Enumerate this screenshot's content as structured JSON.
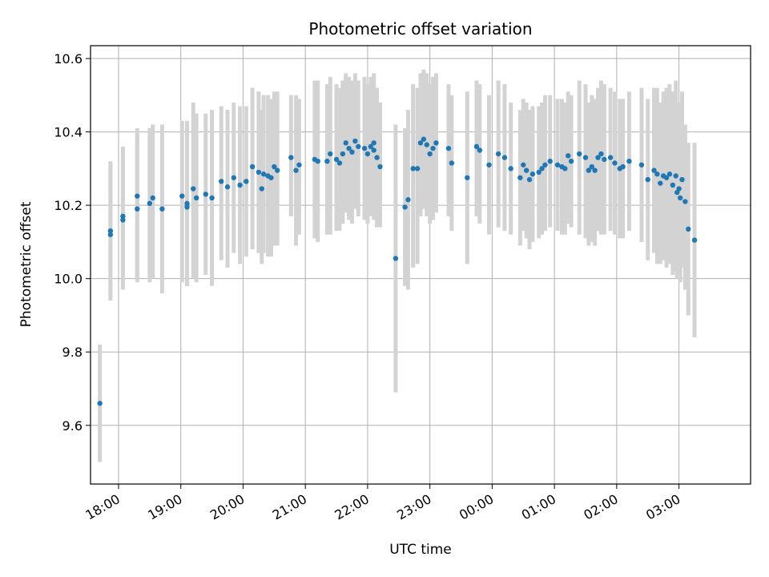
{
  "chart_data": {
    "type": "scatter",
    "title": "Photometric offset variation",
    "xlabel": "UTC time",
    "ylabel": "Photometric offset",
    "grid": true,
    "xlim": [
      17.55,
      28.15
    ],
    "ylim": [
      9.44,
      10.635
    ],
    "x_unit": "hours after 00:00 UTC on the first night",
    "x_ticks": [
      18,
      19,
      20,
      21,
      22,
      23,
      24,
      25,
      26,
      27
    ],
    "x_tick_labels": [
      "18:00",
      "19:00",
      "20:00",
      "21:00",
      "22:00",
      "23:00",
      "00:00",
      "01:00",
      "02:00",
      "03:00"
    ],
    "y_ticks": [
      9.6,
      9.8,
      10.0,
      10.2,
      10.4,
      10.6
    ],
    "y_tick_labels": [
      "9.6",
      "9.8",
      "10.0",
      "10.2",
      "10.4",
      "10.6"
    ],
    "colors": {
      "point": "#1f77b4",
      "errorbar": "#d3d3d3",
      "grid": "#b0b0b0"
    },
    "series": [
      {
        "name": "Photometric offset",
        "x": [
          17.7,
          17.87,
          17.87,
          18.07,
          18.07,
          18.3,
          18.3,
          18.5,
          18.55,
          18.7,
          19.02,
          19.1,
          19.1,
          19.2,
          19.25,
          19.4,
          19.5,
          19.65,
          19.75,
          19.85,
          19.95,
          20.05,
          20.15,
          20.25,
          20.3,
          20.33,
          20.4,
          20.45,
          20.5,
          20.55,
          20.77,
          20.85,
          20.9,
          21.15,
          21.2,
          21.35,
          21.4,
          21.5,
          21.55,
          21.6,
          21.65,
          21.7,
          21.75,
          21.8,
          21.85,
          21.95,
          22.0,
          22.05,
          22.1,
          22.1,
          22.15,
          22.2,
          22.45,
          22.6,
          22.65,
          22.73,
          22.8,
          22.85,
          22.9,
          22.95,
          23.0,
          23.05,
          23.1,
          23.3,
          23.35,
          23.6,
          23.75,
          23.8,
          23.95,
          24.1,
          24.2,
          24.3,
          24.45,
          24.5,
          24.55,
          24.6,
          24.65,
          24.75,
          24.8,
          24.85,
          24.93,
          25.05,
          25.12,
          25.17,
          25.22,
          25.27,
          25.4,
          25.5,
          25.55,
          25.6,
          25.65,
          25.7,
          25.75,
          25.8,
          25.9,
          25.97,
          26.05,
          26.1,
          26.2,
          26.4,
          26.5,
          26.6,
          26.65,
          26.7,
          26.75,
          26.8,
          26.85,
          26.9,
          26.95,
          26.97,
          27.0,
          27.02,
          27.05,
          27.1,
          27.15,
          27.25
        ],
        "y": [
          9.66,
          10.12,
          10.13,
          10.17,
          10.16,
          10.225,
          10.19,
          10.205,
          10.22,
          10.19,
          10.225,
          10.205,
          10.195,
          10.245,
          10.22,
          10.23,
          10.22,
          10.265,
          10.25,
          10.275,
          10.255,
          10.265,
          10.305,
          10.29,
          10.245,
          10.285,
          10.28,
          10.275,
          10.305,
          10.295,
          10.33,
          10.295,
          10.31,
          10.325,
          10.32,
          10.32,
          10.34,
          10.325,
          10.315,
          10.34,
          10.37,
          10.355,
          10.345,
          10.375,
          10.36,
          10.355,
          10.34,
          10.36,
          10.35,
          10.37,
          10.33,
          10.305,
          10.055,
          10.195,
          10.215,
          10.3,
          10.3,
          10.37,
          10.38,
          10.365,
          10.34,
          10.355,
          10.37,
          10.355,
          10.315,
          10.275,
          10.36,
          10.35,
          10.31,
          10.34,
          10.33,
          10.3,
          10.275,
          10.31,
          10.295,
          10.27,
          10.285,
          10.29,
          10.3,
          10.31,
          10.32,
          10.31,
          10.305,
          10.3,
          10.335,
          10.32,
          10.34,
          10.33,
          10.295,
          10.305,
          10.295,
          10.33,
          10.34,
          10.325,
          10.33,
          10.315,
          10.3,
          10.305,
          10.32,
          10.31,
          10.27,
          10.295,
          10.285,
          10.26,
          10.28,
          10.275,
          10.285,
          10.255,
          10.28,
          10.235,
          10.245,
          10.22,
          10.27,
          10.21,
          10.135,
          10.105
        ],
        "yerr_low": [
          9.5,
          9.94,
          9.95,
          9.97,
          9.98,
          9.99,
          10.0,
          9.99,
          10.0,
          9.96,
          9.99,
          9.98,
          9.98,
          10.0,
          9.99,
          10.01,
          9.98,
          10.05,
          10.03,
          10.07,
          10.04,
          10.06,
          10.08,
          10.07,
          10.04,
          10.07,
          10.06,
          10.06,
          10.09,
          10.09,
          10.17,
          10.09,
          10.12,
          10.11,
          10.1,
          10.12,
          10.12,
          10.13,
          10.13,
          10.15,
          10.18,
          10.16,
          10.15,
          10.19,
          10.17,
          10.16,
          10.15,
          10.17,
          10.16,
          10.18,
          10.14,
          10.14,
          9.69,
          9.98,
          9.97,
          10.03,
          10.04,
          10.17,
          10.19,
          10.17,
          10.15,
          10.16,
          10.18,
          10.17,
          10.13,
          10.04,
          10.17,
          10.15,
          10.12,
          10.14,
          10.13,
          10.12,
          10.09,
          10.13,
          10.11,
          10.08,
          10.1,
          10.11,
          10.12,
          10.13,
          10.14,
          10.13,
          10.12,
          10.12,
          10.15,
          10.14,
          10.12,
          10.11,
          10.09,
          10.1,
          10.09,
          10.13,
          10.12,
          10.12,
          10.13,
          10.12,
          10.11,
          10.11,
          10.13,
          10.1,
          10.05,
          10.07,
          10.04,
          10.04,
          10.05,
          10.03,
          10.04,
          10.01,
          10.02,
          10.0,
          10.01,
          9.99,
          10.03,
          9.97,
          9.9,
          9.84
        ],
        "yerr_high": [
          9.82,
          10.31,
          10.32,
          10.36,
          10.35,
          10.41,
          10.39,
          10.41,
          10.42,
          10.42,
          10.43,
          10.43,
          10.42,
          10.48,
          10.45,
          10.45,
          10.46,
          10.47,
          10.46,
          10.48,
          10.47,
          10.47,
          10.52,
          10.51,
          10.46,
          10.5,
          10.5,
          10.49,
          10.51,
          10.51,
          10.5,
          10.5,
          10.49,
          10.54,
          10.54,
          10.53,
          10.55,
          10.53,
          10.52,
          10.54,
          10.56,
          10.55,
          10.54,
          10.56,
          10.54,
          10.55,
          10.53,
          10.55,
          10.54,
          10.56,
          10.52,
          10.48,
          10.42,
          10.41,
          10.46,
          10.53,
          10.52,
          10.56,
          10.57,
          10.56,
          10.53,
          10.55,
          10.56,
          10.53,
          10.5,
          10.51,
          10.54,
          10.53,
          10.5,
          10.54,
          10.53,
          10.48,
          10.46,
          10.49,
          10.48,
          10.46,
          10.47,
          10.47,
          10.48,
          10.5,
          10.5,
          10.49,
          10.49,
          10.48,
          10.51,
          10.5,
          10.54,
          10.53,
          10.48,
          10.5,
          10.49,
          10.52,
          10.54,
          10.53,
          10.52,
          10.51,
          10.49,
          10.49,
          10.51,
          10.52,
          10.49,
          10.52,
          10.52,
          10.48,
          10.51,
          10.52,
          10.53,
          10.51,
          10.54,
          10.47,
          10.48,
          10.43,
          10.51,
          10.42,
          10.37,
          10.37
        ]
      }
    ]
  }
}
